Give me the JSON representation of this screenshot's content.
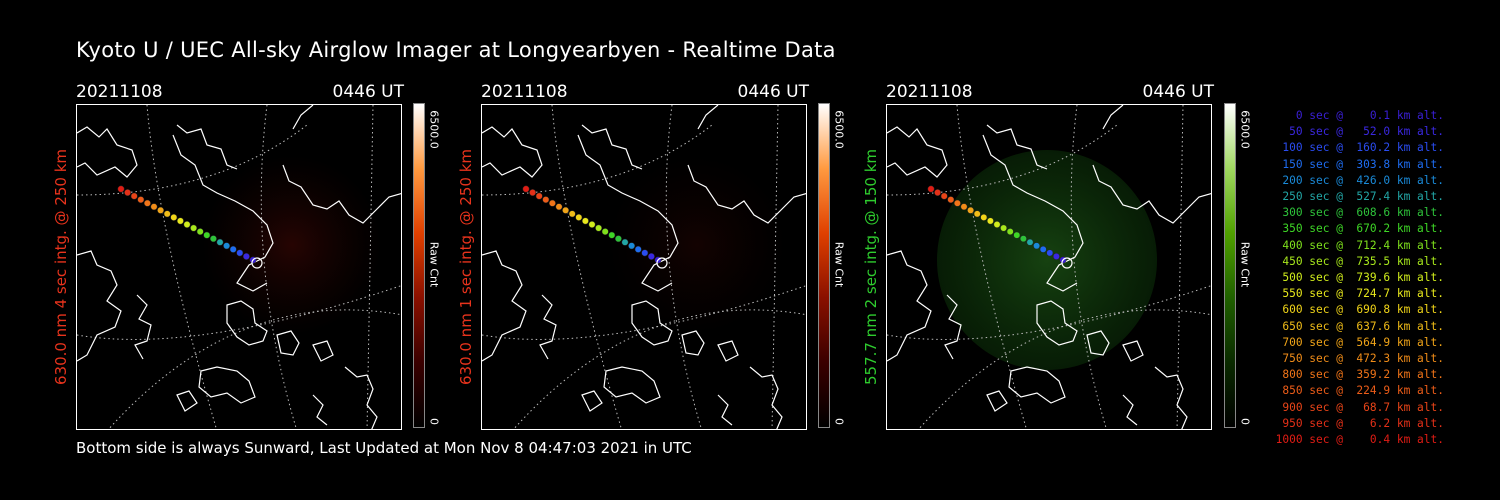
{
  "title": "Kyoto U / UEC All-sky Airglow Imager at Longyearbyen - Realtime Data",
  "footer": "Bottom side is always Sunward, Last Updated at Mon Nov  8 04:47:03 2021 in UTC",
  "panels": [
    {
      "date": "20211108",
      "time": "0446 UT",
      "side_label": "630.0 nm 4 sec intg. @ 250 km",
      "label_color": "#e8331c",
      "cbar_max": "6500.0",
      "cbar_min": "0",
      "cbar_label": "Raw Cnt",
      "colormap": "red"
    },
    {
      "date": "20211108",
      "time": "0446 UT",
      "side_label": "630.0 nm 1 sec intg. @ 250 km",
      "label_color": "#e8331c",
      "cbar_max": "6500.0",
      "cbar_min": "0",
      "cbar_label": "Raw Cnt",
      "colormap": "red"
    },
    {
      "date": "20211108",
      "time": "0446 UT",
      "side_label": "557.7 nm 2 sec intg. @ 150 km",
      "label_color": "#2ecc2e",
      "cbar_max": "6500.0",
      "cbar_min": "0",
      "cbar_label": "Raw Cnt",
      "colormap": "green"
    }
  ],
  "legend": [
    {
      "text": "0 sec @    0.1 km alt.",
      "color": "#3a1fd6"
    },
    {
      "text": "50 sec @   52.0 km alt.",
      "color": "#3a28e0"
    },
    {
      "text": "100 sec @  160.2 km alt.",
      "color": "#2a4cf0"
    },
    {
      "text": "150 sec @  303.8 km alt.",
      "color": "#1e6cf0"
    },
    {
      "text": "200 sec @  426.0 km alt.",
      "color": "#1a8ad8"
    },
    {
      "text": "250 sec @  527.4 km alt.",
      "color": "#22a6a6"
    },
    {
      "text": "300 sec @  608.6 km alt.",
      "color": "#2ec23a"
    },
    {
      "text": "350 sec @  670.2 km alt.",
      "color": "#3ed626"
    },
    {
      "text": "400 sec @  712.4 km alt.",
      "color": "#7ee01c"
    },
    {
      "text": "450 sec @  735.5 km alt.",
      "color": "#a8e81c"
    },
    {
      "text": "500 sec @  739.6 km alt.",
      "color": "#d0ec1c"
    },
    {
      "text": "550 sec @  724.7 km alt.",
      "color": "#e8e81c"
    },
    {
      "text": "600 sec @  690.8 km alt.",
      "color": "#f0d418"
    },
    {
      "text": "650 sec @  637.6 km alt.",
      "color": "#f0bc18"
    },
    {
      "text": "700 sec @  564.9 km alt.",
      "color": "#f0a418"
    },
    {
      "text": "750 sec @  472.3 km alt.",
      "color": "#f08c18"
    },
    {
      "text": "800 sec @  359.2 km alt.",
      "color": "#f07418"
    },
    {
      "text": "850 sec @  224.9 km alt.",
      "color": "#ec5c18"
    },
    {
      "text": "900 sec @   68.7 km alt.",
      "color": "#e84418"
    },
    {
      "text": "950 sec @    6.2 km alt.",
      "color": "#e43018"
    },
    {
      "text": "1000 sec @    0.4 km alt.",
      "color": "#e01c14"
    }
  ]
}
